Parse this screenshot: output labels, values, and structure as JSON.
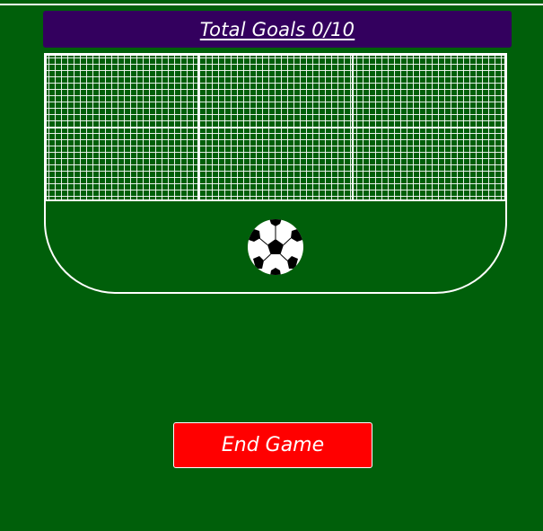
{
  "header": {
    "score_label": "Total Goals 0/10"
  },
  "controls": {
    "end_game_label": "End Game"
  },
  "field": {
    "ball_icon": "soccer-ball-icon"
  },
  "colors": {
    "pitch": "#005f0a",
    "banner": "#33005e",
    "end_button": "#ff0000",
    "lines": "#ffffff"
  }
}
